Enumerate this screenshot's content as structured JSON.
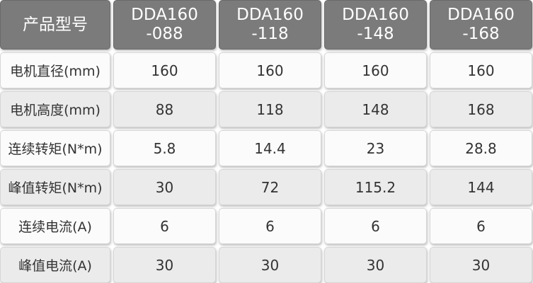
{
  "table": {
    "header": [
      "产品型号",
      "DDA160\n-088",
      "DDA160\n-118",
      "DDA160\n-148",
      "DDA160\n-168"
    ],
    "rows": [
      [
        "电机直径(mm)",
        160,
        160,
        160,
        160
      ],
      [
        "电机高度(mm)",
        88,
        118,
        148,
        168
      ],
      [
        "连续转矩(N*m)",
        5.8,
        14.4,
        23,
        28.8
      ],
      [
        "峰值转矩(N*m)",
        30,
        72,
        115.2,
        144
      ],
      [
        "连续电流(A)",
        6,
        6,
        6,
        6
      ],
      [
        "峰值电流(A)",
        30,
        30,
        30,
        30
      ]
    ]
  }
}
